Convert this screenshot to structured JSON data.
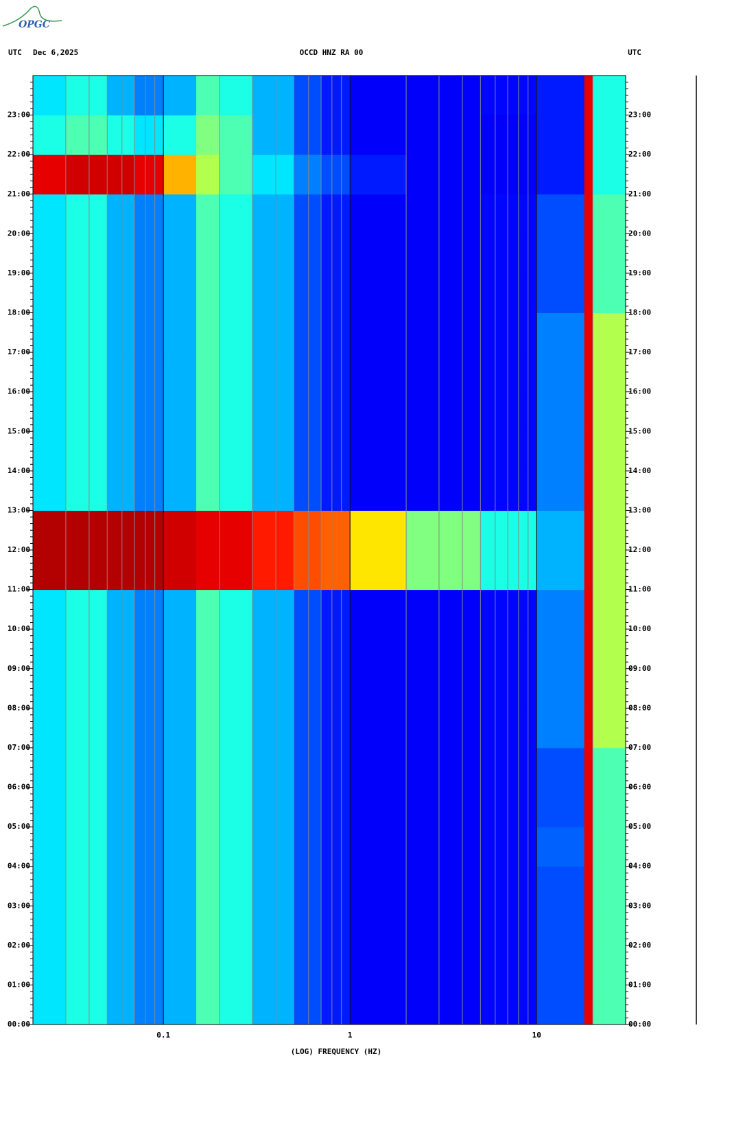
{
  "logo": "OPGC",
  "chart_data": {
    "type": "heatmap",
    "title": "OCCD HNZ RA 00",
    "left_label": "UTC",
    "date": "Dec 6,2025",
    "right_label": "UTC",
    "xlabel": "(LOG) FREQUENCY (HZ)",
    "xscale": "log",
    "xlim": [
      0.02,
      30
    ],
    "xticks": [
      0.1,
      1,
      10
    ],
    "xgrid": [
      0.03,
      0.04,
      0.05,
      0.06,
      0.07,
      0.08,
      0.09,
      0.1,
      0.2,
      0.3,
      0.4,
      0.5,
      0.6,
      0.7,
      0.8,
      0.9,
      1,
      2,
      3,
      4,
      5,
      6,
      7,
      8,
      9,
      10,
      20
    ],
    "ylim": [
      0,
      24
    ],
    "yticks": [
      {
        "value": 0,
        "label": "00:00"
      },
      {
        "value": 1,
        "label": "01:00"
      },
      {
        "value": 2,
        "label": "02:00"
      },
      {
        "value": 3,
        "label": "03:00"
      },
      {
        "value": 4,
        "label": "04:00"
      },
      {
        "value": 5,
        "label": "05:00"
      },
      {
        "value": 6,
        "label": "06:00"
      },
      {
        "value": 7,
        "label": "07:00"
      },
      {
        "value": 8,
        "label": "08:00"
      },
      {
        "value": 9,
        "label": "09:00"
      },
      {
        "value": 10,
        "label": "10:00"
      },
      {
        "value": 11,
        "label": "11:00"
      },
      {
        "value": 12,
        "label": "12:00"
      },
      {
        "value": 13,
        "label": "13:00"
      },
      {
        "value": 14,
        "label": "14:00"
      },
      {
        "value": 15,
        "label": "15:00"
      },
      {
        "value": 16,
        "label": "16:00"
      },
      {
        "value": 17,
        "label": "17:00"
      },
      {
        "value": 18,
        "label": "18:00"
      },
      {
        "value": 19,
        "label": "19:00"
      },
      {
        "value": 20,
        "label": "20:00"
      },
      {
        "value": 21,
        "label": "21:00"
      },
      {
        "value": 22,
        "label": "22:00"
      },
      {
        "value": 23,
        "label": "23:00"
      }
    ],
    "bins": [
      0.02,
      0.03,
      0.05,
      0.07,
      0.1,
      0.15,
      0.2,
      0.3,
      0.5,
      0.7,
      1,
      2,
      5,
      10,
      18,
      20,
      30
    ],
    "rows": [
      0,
      1,
      2,
      3,
      4,
      5,
      6,
      7,
      8,
      9,
      10,
      11,
      12,
      13,
      14,
      15,
      16,
      17,
      18,
      19,
      20,
      21,
      22,
      23,
      24
    ],
    "colormap": [
      "#00008f",
      "#0000ff",
      "#0080ff",
      "#00ffff",
      "#80ff80",
      "#ffff00",
      "#ff8000",
      "#ff0000",
      "#800000"
    ],
    "values": [
      [
        0.35,
        0.4,
        0.3,
        0.25,
        0.3,
        0.45,
        0.4,
        0.3,
        0.2,
        0.15,
        0.12,
        0.12,
        0.13,
        0.2,
        0.9,
        0.45
      ],
      [
        0.35,
        0.4,
        0.3,
        0.25,
        0.3,
        0.45,
        0.4,
        0.3,
        0.2,
        0.15,
        0.12,
        0.12,
        0.13,
        0.2,
        0.9,
        0.45
      ],
      [
        0.35,
        0.4,
        0.3,
        0.25,
        0.3,
        0.45,
        0.4,
        0.3,
        0.2,
        0.15,
        0.12,
        0.12,
        0.13,
        0.2,
        0.9,
        0.45
      ],
      [
        0.35,
        0.4,
        0.3,
        0.25,
        0.3,
        0.45,
        0.4,
        0.3,
        0.2,
        0.15,
        0.12,
        0.12,
        0.13,
        0.2,
        0.9,
        0.45
      ],
      [
        0.35,
        0.4,
        0.3,
        0.25,
        0.3,
        0.45,
        0.4,
        0.3,
        0.2,
        0.15,
        0.12,
        0.12,
        0.13,
        0.22,
        0.9,
        0.45
      ],
      [
        0.35,
        0.4,
        0.3,
        0.25,
        0.3,
        0.45,
        0.4,
        0.3,
        0.2,
        0.15,
        0.12,
        0.12,
        0.13,
        0.2,
        0.9,
        0.45
      ],
      [
        0.35,
        0.4,
        0.3,
        0.25,
        0.3,
        0.45,
        0.4,
        0.3,
        0.2,
        0.15,
        0.12,
        0.12,
        0.13,
        0.2,
        0.9,
        0.45
      ],
      [
        0.35,
        0.4,
        0.3,
        0.25,
        0.3,
        0.45,
        0.4,
        0.3,
        0.2,
        0.15,
        0.12,
        0.12,
        0.13,
        0.25,
        0.9,
        0.55
      ],
      [
        0.35,
        0.4,
        0.3,
        0.25,
        0.3,
        0.45,
        0.4,
        0.3,
        0.2,
        0.15,
        0.12,
        0.12,
        0.13,
        0.25,
        0.9,
        0.55
      ],
      [
        0.35,
        0.4,
        0.3,
        0.25,
        0.3,
        0.45,
        0.4,
        0.3,
        0.2,
        0.15,
        0.12,
        0.12,
        0.13,
        0.25,
        0.9,
        0.55
      ],
      [
        0.35,
        0.4,
        0.3,
        0.25,
        0.3,
        0.45,
        0.4,
        0.3,
        0.2,
        0.15,
        0.12,
        0.12,
        0.13,
        0.25,
        0.9,
        0.55
      ],
      [
        0.95,
        0.95,
        0.95,
        0.95,
        0.92,
        0.9,
        0.9,
        0.85,
        0.8,
        0.78,
        0.65,
        0.5,
        0.4,
        0.3,
        0.9,
        0.55
      ],
      [
        0.95,
        0.95,
        0.95,
        0.95,
        0.92,
        0.9,
        0.9,
        0.85,
        0.8,
        0.78,
        0.65,
        0.5,
        0.4,
        0.3,
        0.9,
        0.55
      ],
      [
        0.35,
        0.4,
        0.3,
        0.25,
        0.3,
        0.45,
        0.4,
        0.3,
        0.2,
        0.15,
        0.12,
        0.12,
        0.13,
        0.25,
        0.9,
        0.55
      ],
      [
        0.35,
        0.4,
        0.3,
        0.25,
        0.3,
        0.45,
        0.4,
        0.3,
        0.2,
        0.15,
        0.12,
        0.12,
        0.13,
        0.25,
        0.9,
        0.55
      ],
      [
        0.35,
        0.4,
        0.3,
        0.25,
        0.3,
        0.45,
        0.4,
        0.3,
        0.2,
        0.15,
        0.12,
        0.12,
        0.13,
        0.25,
        0.9,
        0.55
      ],
      [
        0.35,
        0.4,
        0.3,
        0.25,
        0.3,
        0.45,
        0.4,
        0.3,
        0.2,
        0.15,
        0.12,
        0.12,
        0.13,
        0.25,
        0.9,
        0.55
      ],
      [
        0.35,
        0.4,
        0.3,
        0.25,
        0.3,
        0.45,
        0.4,
        0.3,
        0.2,
        0.15,
        0.12,
        0.12,
        0.13,
        0.25,
        0.9,
        0.55
      ],
      [
        0.35,
        0.4,
        0.3,
        0.25,
        0.3,
        0.45,
        0.4,
        0.3,
        0.2,
        0.15,
        0.12,
        0.12,
        0.13,
        0.2,
        0.9,
        0.45
      ],
      [
        0.35,
        0.4,
        0.3,
        0.25,
        0.3,
        0.45,
        0.4,
        0.3,
        0.2,
        0.15,
        0.12,
        0.12,
        0.13,
        0.2,
        0.9,
        0.45
      ],
      [
        0.35,
        0.4,
        0.3,
        0.25,
        0.3,
        0.45,
        0.4,
        0.3,
        0.2,
        0.15,
        0.12,
        0.12,
        0.13,
        0.2,
        0.9,
        0.45
      ],
      [
        0.9,
        0.92,
        0.92,
        0.9,
        0.7,
        0.55,
        0.45,
        0.35,
        0.25,
        0.2,
        0.15,
        0.12,
        0.12,
        0.15,
        0.9,
        0.4
      ],
      [
        0.4,
        0.45,
        0.4,
        0.35,
        0.4,
        0.5,
        0.45,
        0.3,
        0.2,
        0.15,
        0.12,
        0.12,
        0.12,
        0.15,
        0.9,
        0.4
      ],
      [
        0.35,
        0.4,
        0.3,
        0.25,
        0.3,
        0.45,
        0.4,
        0.3,
        0.2,
        0.15,
        0.12,
        0.12,
        0.13,
        0.15,
        0.9,
        0.4
      ]
    ]
  }
}
